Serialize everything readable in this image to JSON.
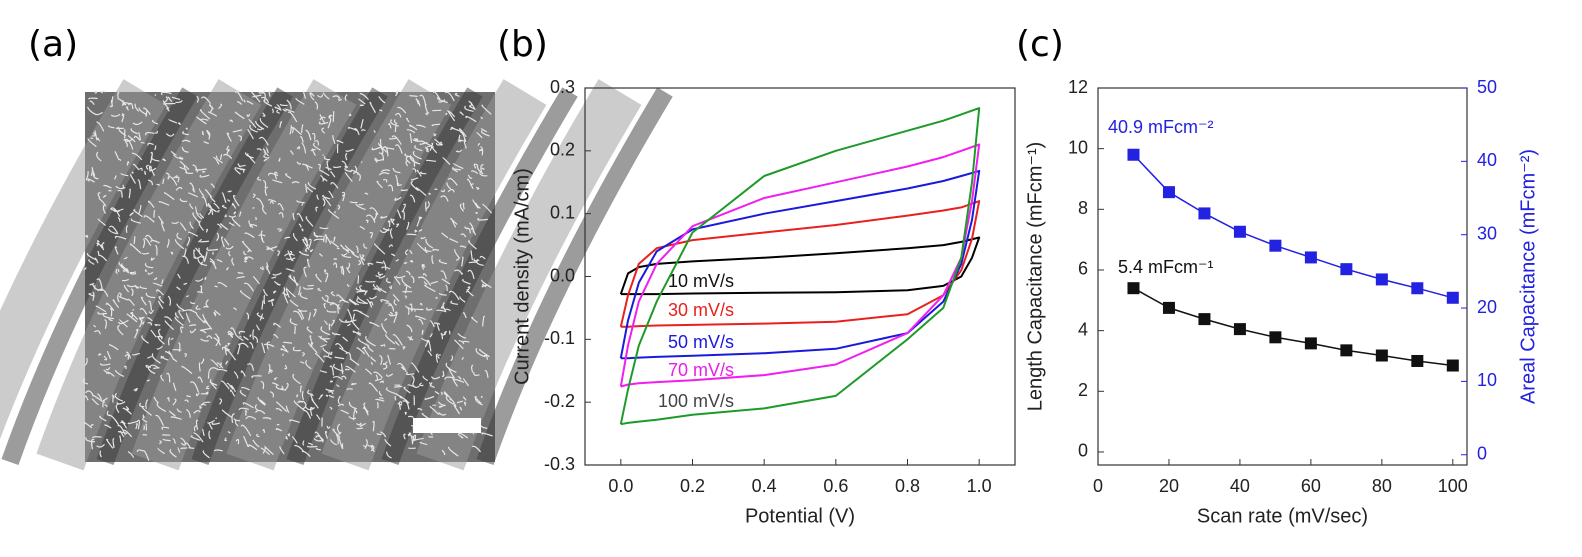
{
  "chart_data": [
    {
      "type": "image",
      "panel_label": "(a)"
    },
    {
      "type": "line",
      "panel_label": "(b)",
      "x_label": "Potential (V)",
      "y_label": "Current density (mA/cm)",
      "x": [
        0,
        0.02,
        0.05,
        0.1,
        0.2,
        0.4,
        0.6,
        0.8,
        0.9,
        0.95,
        1.0,
        1.0,
        0.98,
        0.95,
        0.9,
        0.8,
        0.6,
        0.4,
        0.2,
        0.1,
        0.05,
        0.02,
        0
      ],
      "xlim": [
        -0.1,
        1.1
      ],
      "xticks": [
        {
          "value": 0,
          "label": "0.0"
        },
        0.2,
        0.4,
        0.6,
        0.8,
        {
          "value": 1,
          "label": "1.0"
        }
      ],
      "ylim": [
        -0.3,
        0.3
      ],
      "yticks": [
        -0.3,
        -0.2,
        -0.1,
        {
          "value": 0,
          "label": "0.0"
        },
        0.1,
        0.2,
        0.3
      ],
      "series": [
        {
          "name": "10 mV/s",
          "color": "#000000",
          "label_color": "#111111",
          "values": [
            -0.028,
            0.005,
            0.015,
            0.02,
            0.024,
            0.03,
            0.037,
            0.045,
            0.05,
            0.055,
            0.062,
            0.062,
            0.03,
            0.0,
            -0.015,
            -0.022,
            -0.025,
            -0.026,
            -0.027,
            -0.028,
            -0.028,
            -0.028,
            -0.028
          ]
        },
        {
          "name": "30 mV/s",
          "color": "#e8201e",
          "label_color": "#e8201e",
          "values": [
            -0.08,
            -0.03,
            0.02,
            0.045,
            0.058,
            0.07,
            0.082,
            0.097,
            0.105,
            0.11,
            0.12,
            0.12,
            0.06,
            0.01,
            -0.03,
            -0.06,
            -0.072,
            -0.075,
            -0.077,
            -0.078,
            -0.079,
            -0.08,
            -0.08
          ]
        },
        {
          "name": "50 mV/s",
          "color": "#1a1adc",
          "label_color": "#1a1adc",
          "values": [
            -0.13,
            -0.07,
            -0.01,
            0.04,
            0.075,
            0.1,
            0.12,
            0.14,
            0.152,
            0.16,
            0.168,
            0.168,
            0.09,
            0.02,
            -0.04,
            -0.09,
            -0.115,
            -0.122,
            -0.126,
            -0.128,
            -0.129,
            -0.13,
            -0.13
          ]
        },
        {
          "name": "70 mV/s",
          "color": "#f01ef0",
          "label_color": "#e81ee8",
          "values": [
            -0.175,
            -0.11,
            -0.04,
            0.02,
            0.08,
            0.125,
            0.15,
            0.175,
            0.19,
            0.2,
            0.21,
            0.21,
            0.12,
            0.03,
            -0.03,
            -0.09,
            -0.14,
            -0.157,
            -0.165,
            -0.168,
            -0.17,
            -0.172,
            -0.175
          ]
        },
        {
          "name": "100 mV/s",
          "color": "#1f9a2a",
          "label_color": "#444444",
          "values": [
            -0.235,
            -0.18,
            -0.11,
            -0.04,
            0.07,
            0.16,
            0.2,
            0.232,
            0.248,
            0.258,
            0.268,
            0.268,
            0.15,
            0.03,
            -0.05,
            -0.1,
            -0.19,
            -0.21,
            -0.22,
            -0.228,
            -0.231,
            -0.233,
            -0.235
          ]
        }
      ]
    },
    {
      "type": "line",
      "panel_label": "(c)",
      "marker": "square",
      "x_label": "Scan rate (mV/sec)",
      "y_label": "Length Capacitance (mFcm⁻¹)",
      "y2_label": "Areal Capacitance (mFcm⁻²)",
      "x": [
        10,
        20,
        30,
        40,
        50,
        60,
        70,
        80,
        90,
        100
      ],
      "xlim": [
        0,
        104
      ],
      "xticks": [
        0,
        20,
        40,
        60,
        80,
        100
      ],
      "ylim": [
        -0.43,
        12
      ],
      "yticks": [
        0,
        2,
        4,
        6,
        8,
        10,
        12
      ],
      "y2lim": [
        -1.4,
        50
      ],
      "y2ticks": [
        0,
        10,
        20,
        30,
        40,
        50
      ],
      "series": [
        {
          "name": "Length Capacitance",
          "color": "#111111",
          "annotation": "5.4 mFcm⁻¹",
          "values": [
            5.4,
            4.75,
            4.38,
            4.05,
            3.78,
            3.58,
            3.35,
            3.18,
            3.0,
            2.85
          ]
        },
        {
          "name": "Areal Capacitance",
          "color": "#2222e0",
          "axis": "y2",
          "annotation": "40.9 mFcm⁻²",
          "values": [
            40.9,
            35.8,
            32.9,
            30.4,
            28.5,
            26.9,
            25.3,
            23.9,
            22.7,
            21.4
          ]
        }
      ]
    }
  ]
}
